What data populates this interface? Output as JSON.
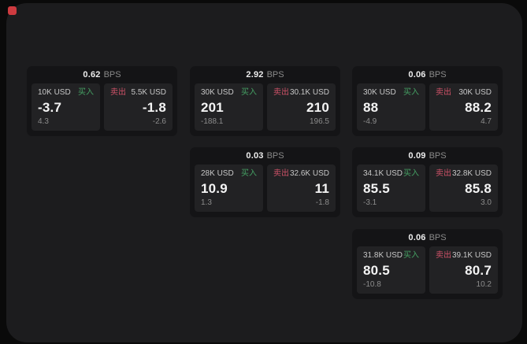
{
  "labels": {
    "bps": "BPS",
    "buy": "买入",
    "sell": "卖出"
  },
  "colors": {
    "panel-bg": "#1c1c1e",
    "card-bg": "#141416",
    "sub-bg": "#222224",
    "buy": "#45a164",
    "sell": "#cf5268",
    "record": "#ce3b40"
  },
  "cards": [
    {
      "bps": "0.62",
      "buy": {
        "amount": "10K USD",
        "value": "-3.7",
        "delta": "4.3"
      },
      "sell": {
        "amount": "5.5K USD",
        "value": "-1.8",
        "delta": "-2.6"
      }
    },
    {
      "bps": "2.92",
      "buy": {
        "amount": "30K USD",
        "value": "201",
        "delta": "-188.1"
      },
      "sell": {
        "amount": "30.1K USD",
        "value": "210",
        "delta": "196.5"
      }
    },
    {
      "bps": "0.06",
      "buy": {
        "amount": "30K USD",
        "value": "88",
        "delta": "-4.9"
      },
      "sell": {
        "amount": "30K USD",
        "value": "88.2",
        "delta": "4.7"
      }
    },
    {
      "bps": "0.03",
      "buy": {
        "amount": "28K USD",
        "value": "10.9",
        "delta": "1.3"
      },
      "sell": {
        "amount": "32.6K USD",
        "value": "11",
        "delta": "-1.8"
      }
    },
    {
      "bps": "0.09",
      "buy": {
        "amount": "34.1K USD",
        "value": "85.5",
        "delta": "-3.1"
      },
      "sell": {
        "amount": "32.8K USD",
        "value": "85.8",
        "delta": "3.0"
      }
    },
    {
      "bps": "0.06",
      "buy": {
        "amount": "31.8K USD",
        "value": "80.5",
        "delta": "-10.8"
      },
      "sell": {
        "amount": "39.1K USD",
        "value": "80.7",
        "delta": "10.2"
      }
    }
  ]
}
